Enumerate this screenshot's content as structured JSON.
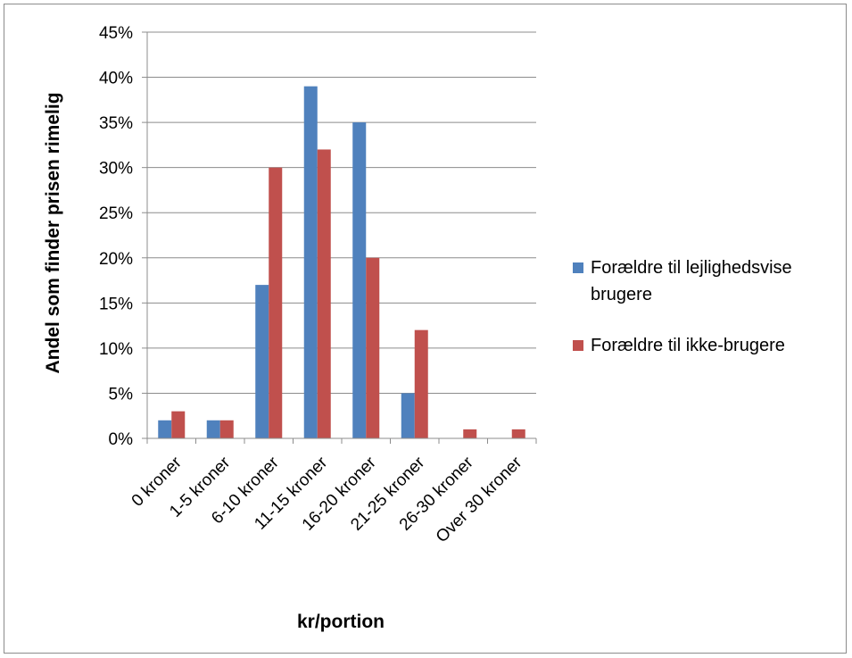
{
  "chart_data": {
    "type": "bar",
    "title": "",
    "xlabel": "kr/portion",
    "ylabel": "Andel som finder prisen rimelig",
    "ylim": [
      0,
      45
    ],
    "yticks": [
      "0%",
      "5%",
      "10%",
      "15%",
      "20%",
      "25%",
      "30%",
      "35%",
      "40%",
      "45%"
    ],
    "grid": true,
    "legend_position": "right",
    "categories": [
      "0 kroner",
      "1-5 kroner",
      "6-10 kroner",
      "11-15 kroner",
      "16-20 kroner",
      "21-25 kroner",
      "26-30 kroner",
      "Over 30 kroner"
    ],
    "series": [
      {
        "name": "Forældre til lejlighedsvise brugere",
        "legend_lines": [
          "Forældre til lejlighedsvise",
          "brugere"
        ],
        "color": "#4f81bd",
        "values": [
          2,
          2,
          17,
          39,
          35,
          5,
          0,
          0
        ]
      },
      {
        "name": "Forældre til ikke-brugere",
        "legend_lines": [
          "Forældre til ikke-brugere"
        ],
        "color": "#c0504d",
        "values": [
          3,
          2,
          30,
          32,
          20,
          12,
          1,
          1
        ]
      }
    ]
  }
}
